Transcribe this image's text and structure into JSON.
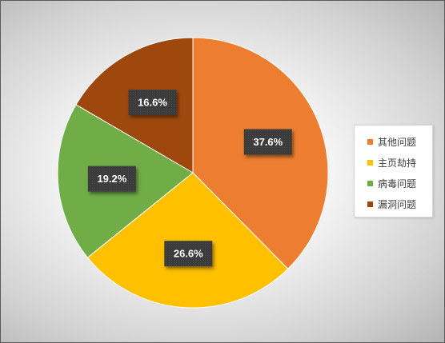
{
  "chart_data": {
    "type": "pie",
    "categories": [
      "其他问题",
      "主页劫持",
      "病毒问题",
      "漏洞问题"
    ],
    "values": [
      37.6,
      26.6,
      19.2,
      16.6
    ],
    "data_labels": [
      "37.6%",
      "26.6%",
      "19.2%",
      "16.6%"
    ],
    "colors": [
      "#ED7D31",
      "#FFC000",
      "#70AD47",
      "#9E480E"
    ],
    "legend": "right",
    "start_angle": "12 o'clock",
    "direction": "clockwise"
  }
}
